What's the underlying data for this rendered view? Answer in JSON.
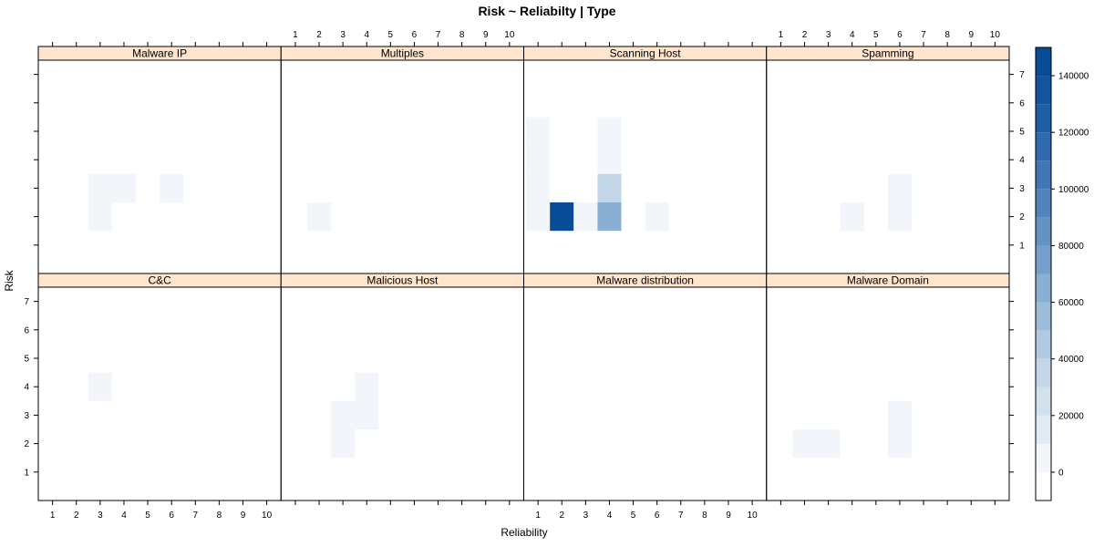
{
  "chart_data": {
    "type": "heatmap",
    "title": "Risk ~ Reliabilty | Type",
    "xlabel": "Reliability",
    "ylabel": "Risk",
    "x_ticks": [
      "1",
      "2",
      "3",
      "4",
      "5",
      "6",
      "7",
      "8",
      "9",
      "10"
    ],
    "y_ticks": [
      "1",
      "2",
      "3",
      "4",
      "5",
      "6",
      "7"
    ],
    "xlim": [
      0.4,
      10.6
    ],
    "ylim": [
      0,
      7.5
    ],
    "colorkey": {
      "ticks": [
        "0",
        "20000",
        "40000",
        "60000",
        "80000",
        "100000",
        "120000",
        "140000"
      ],
      "min": -10000,
      "max": 150000,
      "levels": 16,
      "colors": [
        "#FFFFFF",
        "#F2F6FA",
        "#E1EBF4",
        "#D2E1EE",
        "#C2D6E8",
        "#B0CAE1",
        "#9DBDDA",
        "#8AAFD3",
        "#779FCB",
        "#6492C4",
        "#5183BC",
        "#3F76B4",
        "#2E6AAD",
        "#1E5EA6",
        "#12549F",
        "#084C98"
      ]
    },
    "panels": [
      {
        "label": "Malware IP",
        "cells": [
          {
            "x": 3,
            "y": 2,
            "value": 500
          },
          {
            "x": 3,
            "y": 3,
            "value": 2000
          },
          {
            "x": 4,
            "y": 3,
            "value": 1500
          },
          {
            "x": 6,
            "y": 3,
            "value": 1200
          }
        ]
      },
      {
        "label": "Multiples",
        "cells": [
          {
            "x": 2,
            "y": 2,
            "value": 800
          }
        ]
      },
      {
        "label": "Scanning Host",
        "cells": [
          {
            "x": 1,
            "y": 2,
            "value": 2500
          },
          {
            "x": 2,
            "y": 2,
            "value": 145000
          },
          {
            "x": 3,
            "y": 2,
            "value": 3000
          },
          {
            "x": 4,
            "y": 2,
            "value": 62000
          },
          {
            "x": 6,
            "y": 2,
            "value": 3000
          },
          {
            "x": 1,
            "y": 3,
            "value": 2000
          },
          {
            "x": 4,
            "y": 3,
            "value": 30000
          },
          {
            "x": 1,
            "y": 4,
            "value": 1500
          },
          {
            "x": 4,
            "y": 4,
            "value": 1500
          },
          {
            "x": 1,
            "y": 5,
            "value": 1200
          },
          {
            "x": 4,
            "y": 5,
            "value": 1200
          }
        ]
      },
      {
        "label": "Spamming",
        "cells": [
          {
            "x": 4,
            "y": 2,
            "value": 1000
          },
          {
            "x": 6,
            "y": 2,
            "value": 1500
          },
          {
            "x": 6,
            "y": 3,
            "value": 1000
          }
        ]
      },
      {
        "label": "C&C",
        "cells": [
          {
            "x": 3,
            "y": 4,
            "value": 1200
          }
        ]
      },
      {
        "label": "Malicious Host",
        "cells": [
          {
            "x": 3,
            "y": 2,
            "value": 1500
          },
          {
            "x": 3,
            "y": 3,
            "value": 1200
          },
          {
            "x": 4,
            "y": 3,
            "value": 1200
          },
          {
            "x": 4,
            "y": 4,
            "value": 1000
          }
        ]
      },
      {
        "label": "Malware distribution",
        "cells": []
      },
      {
        "label": "Malware Domain",
        "cells": [
          {
            "x": 2,
            "y": 2,
            "value": 1200
          },
          {
            "x": 3,
            "y": 2,
            "value": 1200
          },
          {
            "x": 6,
            "y": 2,
            "value": 1200
          },
          {
            "x": 6,
            "y": 3,
            "value": 1000
          }
        ]
      }
    ]
  }
}
